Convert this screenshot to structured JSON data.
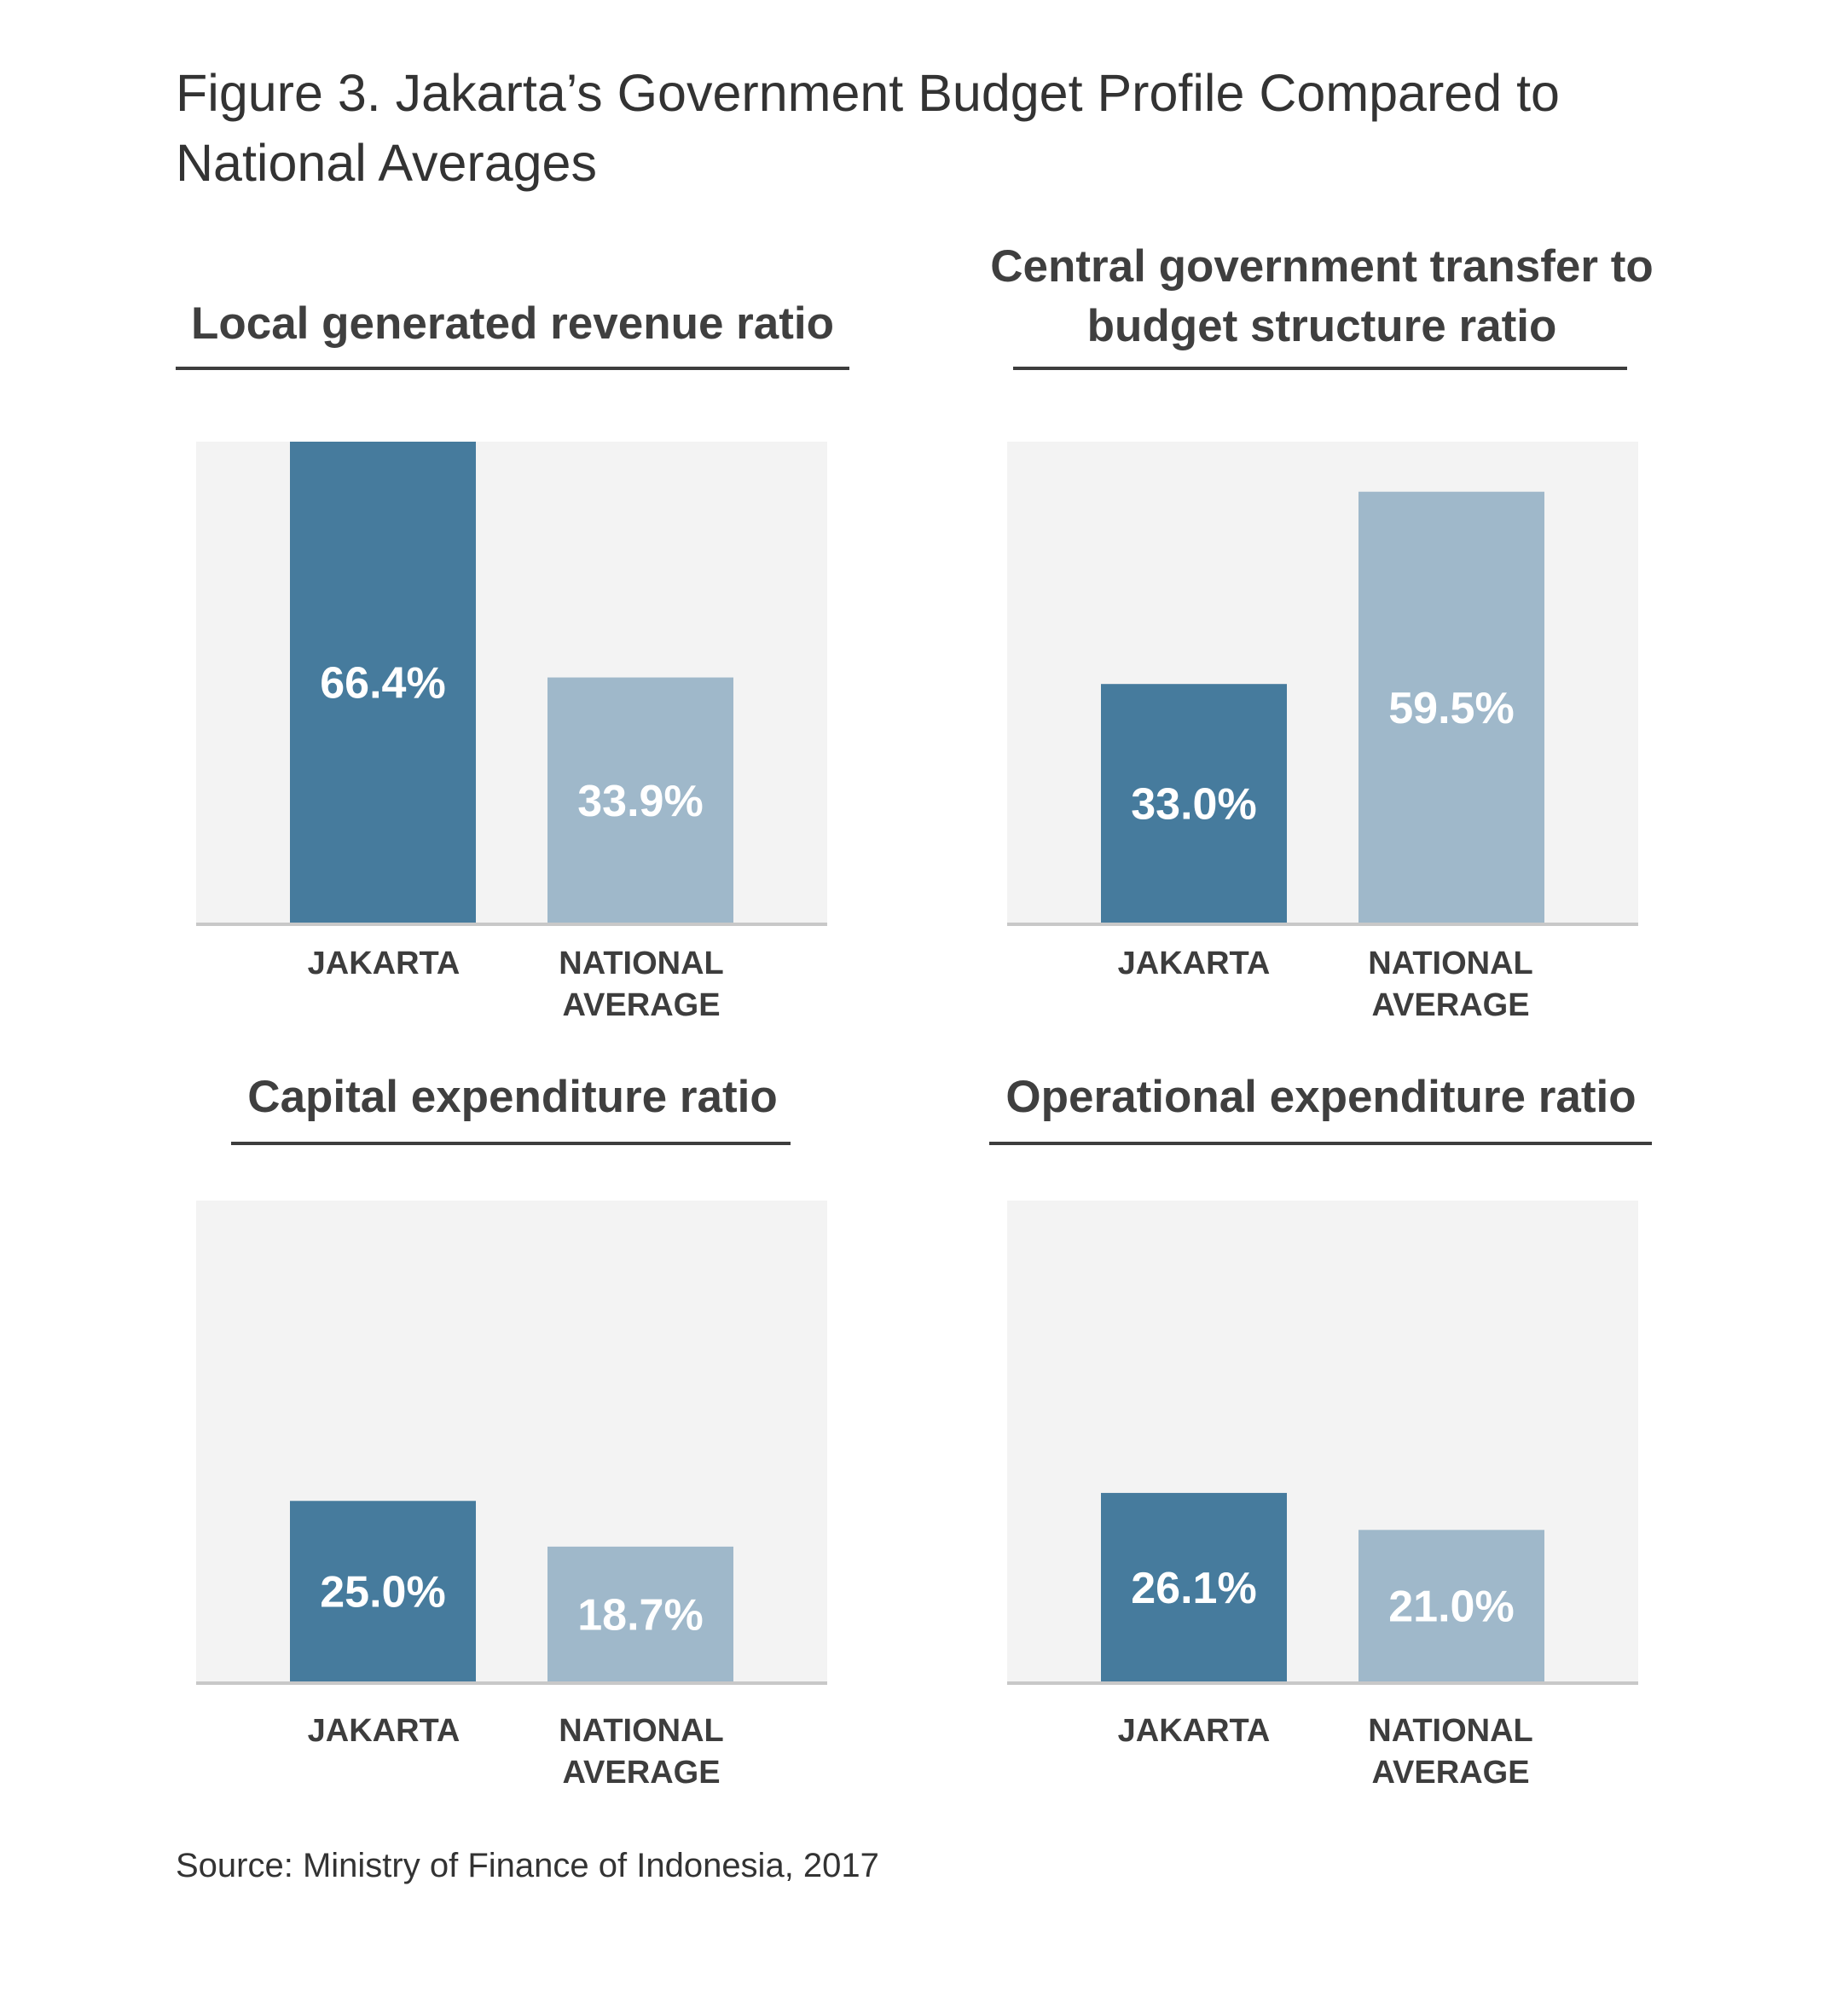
{
  "figure": {
    "title": "Figure 3. Jakarta’s Government Budget Profile Compared to National Averages",
    "source": "Source: Ministry of Finance of Indonesia, 2017"
  },
  "colors": {
    "jakarta": "#467b9d",
    "national": "#9fb8ca",
    "plot_background": "#f3f3f3",
    "baseline": "#c8c8c8",
    "label": "#ffffff"
  },
  "chart_data": [
    {
      "type": "bar",
      "title": "Local generated revenue ratio",
      "categories": [
        "JAKARTA",
        "NATIONAL\nAVERAGE"
      ],
      "values": [
        66.4,
        33.9
      ],
      "value_labels": [
        "66.4%",
        "33.9%"
      ],
      "ylim": [
        0,
        66.4
      ]
    },
    {
      "type": "bar",
      "title": "Central government transfer to budget structure ratio",
      "categories": [
        "JAKARTA",
        "NATIONAL\nAVERAGE"
      ],
      "values": [
        33.0,
        59.5
      ],
      "value_labels": [
        "33.0%",
        "59.5%"
      ],
      "ylim": [
        0,
        66.4
      ]
    },
    {
      "type": "bar",
      "title": "Capital expenditure ratio",
      "categories": [
        "JAKARTA",
        "NATIONAL\nAVERAGE"
      ],
      "values": [
        25.0,
        18.7
      ],
      "value_labels": [
        "25.0%",
        "18.7%"
      ],
      "ylim": [
        0,
        66.4
      ]
    },
    {
      "type": "bar",
      "title": "Operational expenditure ratio",
      "categories": [
        "JAKARTA",
        "NATIONAL\nAVERAGE"
      ],
      "values": [
        26.1,
        21.0
      ],
      "value_labels": [
        "26.1%",
        "21.0%"
      ],
      "ylim": [
        0,
        66.4
      ]
    }
  ]
}
